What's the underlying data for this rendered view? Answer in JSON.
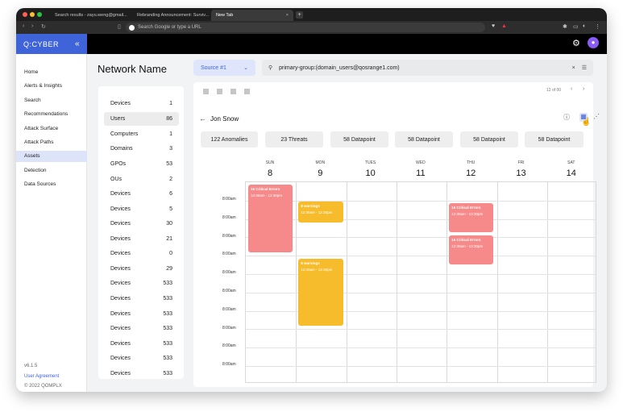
{
  "browser": {
    "tabs": [
      {
        "label": "Search results - zayu.weng@gmail...",
        "icon": "gmail-icon"
      },
      {
        "label": "Rebranding Announcement: Surviv...",
        "icon": "purple-square-icon"
      },
      {
        "label": "New Tab",
        "icon": "none"
      }
    ],
    "new_tab_label": "+",
    "close_label": "×",
    "omnibox_placeholder": "Search Google or type a URL"
  },
  "app": {
    "logo": "Q:CYBER",
    "collapse_label": "«",
    "accent": "#3f63d8"
  },
  "sidebar": {
    "items": [
      "Home",
      "Alerts & Insights",
      "Search",
      "Recommendations",
      "Attack Surface",
      "Attack Paths",
      "Assets",
      "Detection",
      "Data Sources"
    ],
    "active_index": 6,
    "version": "v6.1.5",
    "user_agreement": "User Agreement",
    "copyright": "© 2022 QOMPLX"
  },
  "network": {
    "title": "Network Name",
    "rows": [
      {
        "label": "Devices",
        "count": "1"
      },
      {
        "label": "Users",
        "count": "86"
      },
      {
        "label": "Computers",
        "count": "1"
      },
      {
        "label": "Domains",
        "count": "3"
      },
      {
        "label": "GPOs",
        "count": "53"
      },
      {
        "label": "OUs",
        "count": "2"
      },
      {
        "label": "Devices",
        "count": "6"
      },
      {
        "label": "Devices",
        "count": "5"
      },
      {
        "label": "Devices",
        "count": "30"
      },
      {
        "label": "Devices",
        "count": "21"
      },
      {
        "label": "Devices",
        "count": "0"
      },
      {
        "label": "Devices",
        "count": "29"
      },
      {
        "label": "Devices",
        "count": "533"
      },
      {
        "label": "Devices",
        "count": "533"
      },
      {
        "label": "Devices",
        "count": "533"
      },
      {
        "label": "Devices",
        "count": "533"
      },
      {
        "label": "Devices",
        "count": "533"
      },
      {
        "label": "Devices",
        "count": "533"
      },
      {
        "label": "Devices",
        "count": "533"
      }
    ],
    "active_index": 1
  },
  "filters": {
    "source_label": "Source #1",
    "search_value": "primary-group:(domain_users@qosrange1.com)",
    "clear_label": "×"
  },
  "toolbar": {
    "page_info": "12 of 00",
    "prev_label": "‹",
    "next_label": "›"
  },
  "profile": {
    "back_label": "←",
    "name": "Jon Snow",
    "info_icon": "ⓘ",
    "calendar_icon": "▦",
    "graph_icon": "⋰"
  },
  "stats": [
    "122 Anomalies",
    "23 Threats",
    "58 Datapoint",
    "58 Datapoint",
    "58 Datapoint",
    "58 Datapoint"
  ],
  "calendar": {
    "days": [
      {
        "name": "SUN",
        "num": "8"
      },
      {
        "name": "MON",
        "num": "9"
      },
      {
        "name": "TUES",
        "num": "10"
      },
      {
        "name": "WED",
        "num": "11"
      },
      {
        "name": "THU",
        "num": "12"
      },
      {
        "name": "FRI",
        "num": "13"
      },
      {
        "name": "SAT",
        "num": "14"
      }
    ],
    "times": [
      "8:00am",
      "8:00am",
      "8:00am",
      "8:00am",
      "8:00am",
      "8:00am",
      "8:00am",
      "8:00am",
      "8:00am",
      "8:00am"
    ],
    "events": [
      {
        "title": "16 Critical Errors",
        "time": "12:30am - 12:30pm",
        "day": 0,
        "color": "#f68a8a"
      },
      {
        "title": "8 warnings",
        "time": "12:30am - 12:30pm",
        "day": 1,
        "color": "#f7bc2b"
      },
      {
        "title": "8 warnings",
        "time": "12:30am - 12:30pm",
        "day": 1,
        "color": "#f7bc2b"
      },
      {
        "title": "16 Critical Errors",
        "time": "12:30am - 12:30pm",
        "day": 4,
        "color": "#f68a8a"
      },
      {
        "title": "16 Critical Errors",
        "time": "12:30am - 12:30pm",
        "day": 4,
        "color": "#f68a8a"
      }
    ]
  }
}
